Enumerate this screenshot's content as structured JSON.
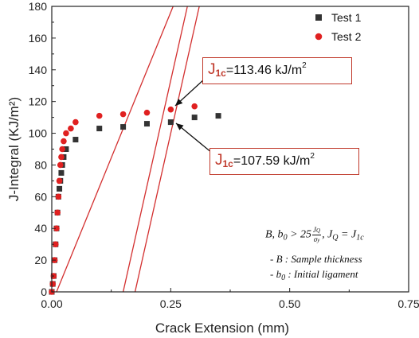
{
  "chart_data": {
    "type": "scatter",
    "xlabel": "Crack Extension (mm)",
    "ylabel": "J-Integral (KJ/m²)",
    "xlim": [
      0,
      0.75
    ],
    "ylim": [
      0,
      180
    ],
    "x_ticks": [
      "0.00",
      "0.25",
      "0.50",
      "0.75"
    ],
    "y_ticks": [
      "0",
      "20",
      "40",
      "60",
      "80",
      "100",
      "120",
      "140",
      "160",
      "180"
    ],
    "legend_position": "top-right",
    "series": [
      {
        "name": "Test 1",
        "marker": "square",
        "color": "#333333",
        "x": [
          0.0,
          0.002,
          0.004,
          0.006,
          0.008,
          0.01,
          0.012,
          0.014,
          0.016,
          0.018,
          0.02,
          0.022,
          0.025,
          0.03,
          0.05,
          0.1,
          0.15,
          0.2,
          0.25,
          0.3,
          0.35
        ],
        "y": [
          0,
          5,
          10,
          20,
          30,
          40,
          50,
          60,
          65,
          70,
          75,
          80,
          85,
          90,
          96,
          103,
          104,
          106,
          107,
          110,
          111
        ]
      },
      {
        "name": "Test 2",
        "marker": "circle",
        "color": "#e02020",
        "x": [
          0.0,
          0.002,
          0.004,
          0.006,
          0.008,
          0.01,
          0.012,
          0.014,
          0.016,
          0.018,
          0.02,
          0.022,
          0.025,
          0.03,
          0.04,
          0.05,
          0.1,
          0.15,
          0.2,
          0.25,
          0.3
        ],
        "y": [
          0,
          5,
          10,
          20,
          30,
          40,
          50,
          60,
          70,
          80,
          85,
          90,
          95,
          100,
          103,
          107,
          111,
          112,
          113,
          115,
          117
        ]
      }
    ],
    "lines": [
      {
        "color": "#d32f2f",
        "x": [
          0.01,
          0.255
        ],
        "y": [
          0,
          180
        ]
      },
      {
        "color": "#d32f2f",
        "x": [
          0.15,
          0.285
        ],
        "y": [
          0,
          180
        ]
      },
      {
        "color": "#d32f2f",
        "x": [
          0.175,
          0.31
        ],
        "y": [
          0,
          180
        ]
      }
    ],
    "annotations": {
      "callout1": {
        "symbol": "J",
        "sub": "1c",
        "text": "=113.46 kJ/m",
        "sup": "2"
      },
      "callout2": {
        "symbol": "J",
        "sub": "1c",
        "text": "=107.59 kJ/m",
        "sup": "2"
      },
      "formula": {
        "b0_condition": "B, b",
        "sub0": "0",
        "gt": " > 25",
        "frac_num": "J",
        "frac_num_sub": "Q",
        "frac_den": "σ",
        "frac_den_sub": "y",
        "jq_eq": ", J",
        "jq_sub": "Q",
        "eq_j1c": " = J",
        "j1c_sub": "1c",
        "note_b": "- B : Sample thickness",
        "note_b0_prefix": "- b",
        "note_b0_sub": "0",
        "note_b0_suffix": " : Initial ligament"
      }
    }
  }
}
